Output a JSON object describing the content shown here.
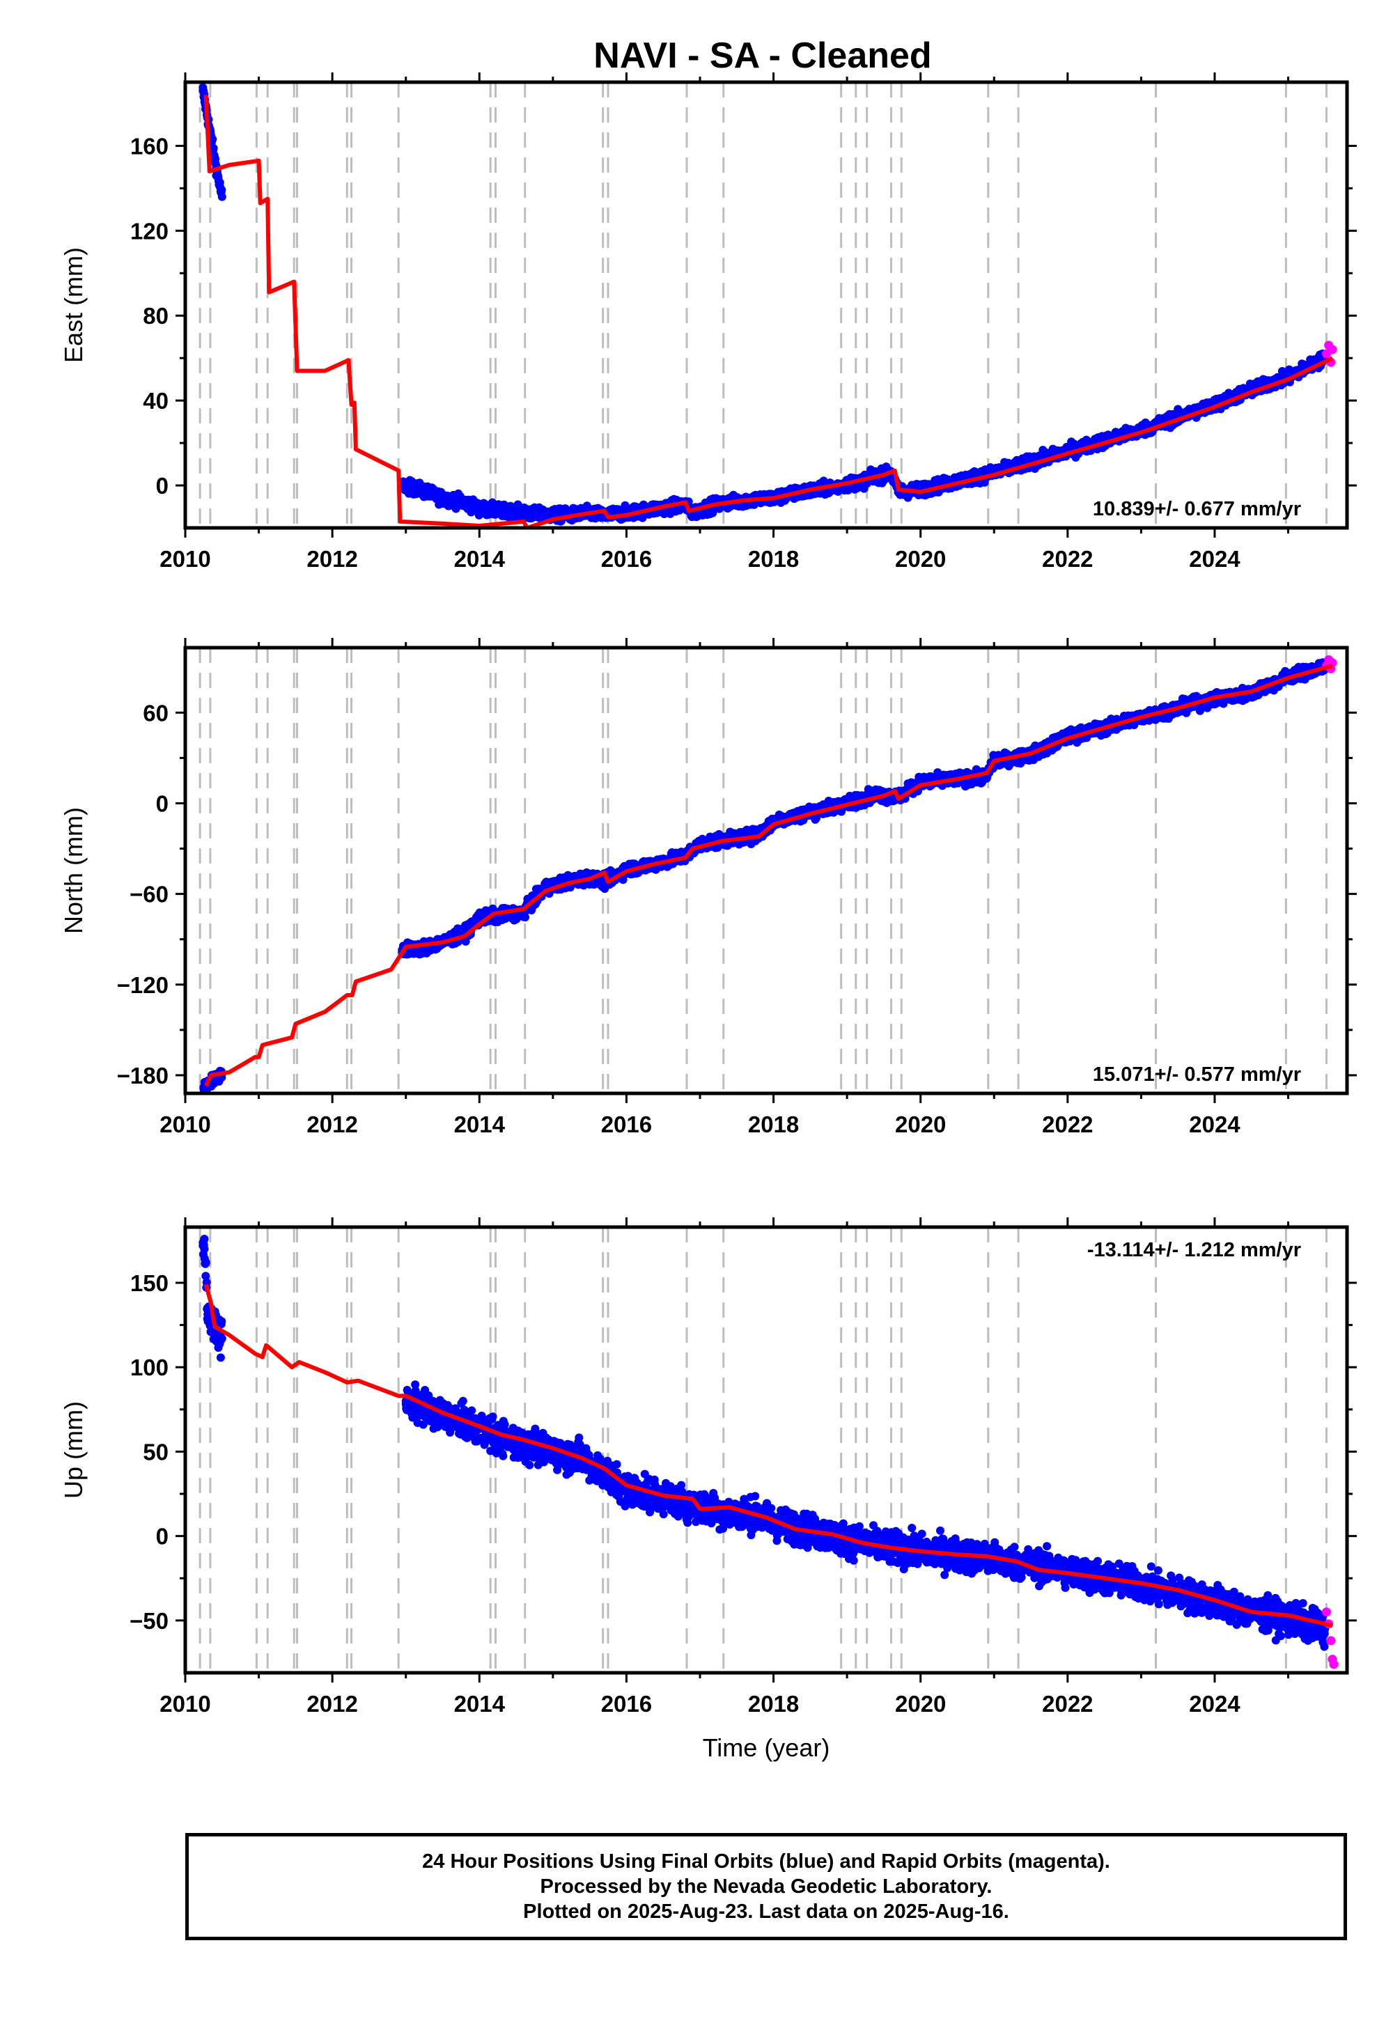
{
  "title": "NAVI  - SA - Cleaned",
  "colors": {
    "final": "#0000ff",
    "rapid": "#ff00ff",
    "model": "#ff0000",
    "step": "#bdbdbd",
    "frame": "#000000"
  },
  "chart_data": [
    {
      "type": "scatter",
      "panel": "east",
      "ylabel": "East (mm)",
      "xlabel": "",
      "xlim": [
        2010.0,
        2025.8
      ],
      "ylim": [
        -20,
        190
      ],
      "xticks": [
        2010,
        2012,
        2014,
        2016,
        2018,
        2020,
        2022,
        2024
      ],
      "yticks": [
        0,
        40,
        80,
        120,
        160
      ],
      "rate_label": "10.839+/- 0.677 mm/yr",
      "final_series": [
        [
          2010.24,
          186
        ],
        [
          2010.28,
          178
        ],
        [
          2010.33,
          168
        ],
        [
          2010.38,
          158
        ],
        [
          2010.43,
          148
        ],
        [
          2010.5,
          136
        ],
        [
          2012.95,
          0
        ],
        [
          2013.2,
          -2
        ],
        [
          2013.5,
          -6
        ],
        [
          2013.8,
          -8
        ],
        [
          2014.0,
          -11
        ],
        [
          2014.3,
          -12
        ],
        [
          2014.6,
          -13
        ],
        [
          2014.9,
          -14
        ],
        [
          2015.2,
          -14
        ],
        [
          2015.5,
          -13
        ],
        [
          2015.7,
          -14
        ],
        [
          2016.0,
          -13
        ],
        [
          2016.4,
          -11
        ],
        [
          2016.8,
          -9
        ],
        [
          2016.9,
          -13
        ],
        [
          2017.2,
          -9
        ],
        [
          2017.6,
          -7
        ],
        [
          2018.0,
          -6
        ],
        [
          2018.4,
          -3
        ],
        [
          2018.8,
          -1
        ],
        [
          2019.2,
          2
        ],
        [
          2019.6,
          6
        ],
        [
          2019.7,
          -3
        ],
        [
          2020.0,
          -2
        ],
        [
          2020.5,
          2
        ],
        [
          2021.0,
          6
        ],
        [
          2021.5,
          11
        ],
        [
          2022.0,
          16
        ],
        [
          2022.5,
          21
        ],
        [
          2023.0,
          26
        ],
        [
          2023.5,
          32
        ],
        [
          2024.0,
          38
        ],
        [
          2024.5,
          45
        ],
        [
          2025.0,
          51
        ],
        [
          2025.5,
          60
        ]
      ],
      "rapid_series": [
        [
          2025.52,
          62
        ],
        [
          2025.55,
          66
        ],
        [
          2025.58,
          58
        ],
        [
          2025.6,
          64
        ]
      ],
      "model_line": [
        [
          2010.28,
          184
        ],
        [
          2010.33,
          148
        ],
        [
          2010.6,
          151
        ],
        [
          2011.0,
          153
        ],
        [
          2011.02,
          133
        ],
        [
          2011.12,
          135
        ],
        [
          2011.14,
          91
        ],
        [
          2011.48,
          96
        ],
        [
          2011.5,
          75
        ],
        [
          2011.52,
          54
        ],
        [
          2011.9,
          54
        ],
        [
          2012.22,
          59
        ],
        [
          2012.26,
          38
        ],
        [
          2012.3,
          39
        ],
        [
          2012.32,
          17
        ],
        [
          2012.9,
          7
        ],
        [
          2012.92,
          -17
        ],
        [
          2013.5,
          -18
        ],
        [
          2014.0,
          -19
        ],
        [
          2014.3,
          -18
        ],
        [
          2014.6,
          -17
        ],
        [
          2014.65,
          -20
        ],
        [
          2015.0,
          -16
        ],
        [
          2015.5,
          -13
        ],
        [
          2015.7,
          -12
        ],
        [
          2015.75,
          -15
        ],
        [
          2016.0,
          -14
        ],
        [
          2016.5,
          -10
        ],
        [
          2016.8,
          -8
        ],
        [
          2016.85,
          -12
        ],
        [
          2017.2,
          -9
        ],
        [
          2017.6,
          -7
        ],
        [
          2018.0,
          -6
        ],
        [
          2018.5,
          -2
        ],
        [
          2019.0,
          1
        ],
        [
          2019.5,
          5
        ],
        [
          2019.65,
          7
        ],
        [
          2019.7,
          -2
        ],
        [
          2020.0,
          -3
        ],
        [
          2020.5,
          1
        ],
        [
          2021.0,
          5
        ],
        [
          2021.5,
          10
        ],
        [
          2022.0,
          15
        ],
        [
          2022.5,
          20
        ],
        [
          2023.0,
          25
        ],
        [
          2023.5,
          31
        ],
        [
          2024.0,
          37
        ],
        [
          2024.5,
          44
        ],
        [
          2025.0,
          50
        ],
        [
          2025.6,
          60
        ]
      ]
    },
    {
      "type": "scatter",
      "panel": "north",
      "ylabel": "North (mm)",
      "xlabel": "",
      "xlim": [
        2010.0,
        2025.8
      ],
      "ylim": [
        -192,
        103
      ],
      "xticks": [
        2010,
        2012,
        2014,
        2016,
        2018,
        2020,
        2022,
        2024
      ],
      "yticks": [
        -180,
        -120,
        -60,
        0,
        60
      ],
      "rate_label": "15.071+/- 0.577 mm/yr",
      "final_series": [
        [
          2010.25,
          -188
        ],
        [
          2010.3,
          -186
        ],
        [
          2010.4,
          -182
        ],
        [
          2010.5,
          -179
        ],
        [
          2012.95,
          -97
        ],
        [
          2013.2,
          -96
        ],
        [
          2013.5,
          -92
        ],
        [
          2013.8,
          -86
        ],
        [
          2014.0,
          -76
        ],
        [
          2014.3,
          -74
        ],
        [
          2014.6,
          -72
        ],
        [
          2014.9,
          -56
        ],
        [
          2015.2,
          -52
        ],
        [
          2015.5,
          -49
        ],
        [
          2015.7,
          -52
        ],
        [
          2016.0,
          -44
        ],
        [
          2016.4,
          -40
        ],
        [
          2016.8,
          -35
        ],
        [
          2017.0,
          -27
        ],
        [
          2017.4,
          -24
        ],
        [
          2017.8,
          -21
        ],
        [
          2018.0,
          -12
        ],
        [
          2018.5,
          -6
        ],
        [
          2019.0,
          0
        ],
        [
          2019.4,
          6
        ],
        [
          2019.7,
          4
        ],
        [
          2020.0,
          14
        ],
        [
          2020.5,
          16
        ],
        [
          2020.9,
          18
        ],
        [
          2021.0,
          28
        ],
        [
          2021.5,
          32
        ],
        [
          2022.0,
          44
        ],
        [
          2022.5,
          50
        ],
        [
          2023.0,
          57
        ],
        [
          2023.5,
          63
        ],
        [
          2024.0,
          69
        ],
        [
          2024.5,
          73
        ],
        [
          2025.0,
          84
        ],
        [
          2025.5,
          90
        ]
      ],
      "rapid_series": [
        [
          2025.52,
          91
        ],
        [
          2025.55,
          95
        ],
        [
          2025.58,
          89
        ],
        [
          2025.6,
          93
        ]
      ],
      "model_line": [
        [
          2010.28,
          -187
        ],
        [
          2010.35,
          -180
        ],
        [
          2010.6,
          -178
        ],
        [
          2010.95,
          -168
        ],
        [
          2011.0,
          -168
        ],
        [
          2011.05,
          -160
        ],
        [
          2011.45,
          -155
        ],
        [
          2011.5,
          -146
        ],
        [
          2011.9,
          -138
        ],
        [
          2012.2,
          -127
        ],
        [
          2012.27,
          -127
        ],
        [
          2012.32,
          -118
        ],
        [
          2012.8,
          -110
        ],
        [
          2013.0,
          -95
        ],
        [
          2013.5,
          -92
        ],
        [
          2013.8,
          -88
        ],
        [
          2014.0,
          -80
        ],
        [
          2014.2,
          -73
        ],
        [
          2014.6,
          -70
        ],
        [
          2014.9,
          -58
        ],
        [
          2015.2,
          -53
        ],
        [
          2015.5,
          -50
        ],
        [
          2015.7,
          -46
        ],
        [
          2015.75,
          -52
        ],
        [
          2016.0,
          -45
        ],
        [
          2016.4,
          -40
        ],
        [
          2016.8,
          -36
        ],
        [
          2016.9,
          -30
        ],
        [
          2017.3,
          -25
        ],
        [
          2017.8,
          -22
        ],
        [
          2018.0,
          -14
        ],
        [
          2018.5,
          -7
        ],
        [
          2019.0,
          -1
        ],
        [
          2019.5,
          5
        ],
        [
          2019.65,
          8
        ],
        [
          2019.7,
          3
        ],
        [
          2020.0,
          12
        ],
        [
          2020.5,
          16
        ],
        [
          2020.9,
          20
        ],
        [
          2021.0,
          28
        ],
        [
          2021.5,
          33
        ],
        [
          2022.0,
          43
        ],
        [
          2022.5,
          50
        ],
        [
          2023.0,
          57
        ],
        [
          2023.5,
          63
        ],
        [
          2024.0,
          70
        ],
        [
          2024.5,
          74
        ],
        [
          2025.0,
          83
        ],
        [
          2025.6,
          91
        ]
      ]
    },
    {
      "type": "scatter",
      "panel": "up",
      "ylabel": "Up (mm)",
      "xlabel": "Time (year)",
      "xlim": [
        2010.0,
        2025.8
      ],
      "ylim": [
        -81,
        183
      ],
      "xticks": [
        2010,
        2012,
        2014,
        2016,
        2018,
        2020,
        2022,
        2024
      ],
      "yticks": [
        -50,
        0,
        50,
        100,
        150
      ],
      "rate_label": "-13.114+/- 1.212 mm/yr",
      "final_series": [
        [
          2010.24,
          172
        ],
        [
          2010.26,
          176
        ],
        [
          2010.3,
          135
        ],
        [
          2010.35,
          128
        ],
        [
          2010.4,
          122
        ],
        [
          2010.5,
          117
        ],
        [
          2013.0,
          80
        ],
        [
          2013.3,
          75
        ],
        [
          2013.6,
          70
        ],
        [
          2014.0,
          64
        ],
        [
          2014.3,
          58
        ],
        [
          2014.6,
          54
        ],
        [
          2015.0,
          50
        ],
        [
          2015.4,
          46
        ],
        [
          2015.8,
          34
        ],
        [
          2016.0,
          28
        ],
        [
          2016.4,
          24
        ],
        [
          2016.8,
          20
        ],
        [
          2017.0,
          17
        ],
        [
          2017.4,
          14
        ],
        [
          2017.8,
          12
        ],
        [
          2018.0,
          8
        ],
        [
          2018.4,
          4
        ],
        [
          2018.8,
          0
        ],
        [
          2019.2,
          -4
        ],
        [
          2019.6,
          -7
        ],
        [
          2020.0,
          -9
        ],
        [
          2020.5,
          -11
        ],
        [
          2021.0,
          -14
        ],
        [
          2021.5,
          -17
        ],
        [
          2022.0,
          -21
        ],
        [
          2022.5,
          -25
        ],
        [
          2023.0,
          -29
        ],
        [
          2023.5,
          -34
        ],
        [
          2024.0,
          -39
        ],
        [
          2024.5,
          -45
        ],
        [
          2025.0,
          -49
        ],
        [
          2025.5,
          -55
        ]
      ],
      "rapid_series": [
        [
          2025.52,
          -45
        ],
        [
          2025.55,
          -52
        ],
        [
          2025.58,
          -62
        ],
        [
          2025.6,
          -73
        ],
        [
          2025.62,
          -76
        ]
      ],
      "model_line": [
        [
          2010.28,
          149
        ],
        [
          2010.35,
          138
        ],
        [
          2010.4,
          124
        ],
        [
          2010.6,
          119
        ],
        [
          2010.95,
          108
        ],
        [
          2011.05,
          106
        ],
        [
          2011.1,
          113
        ],
        [
          2011.45,
          100
        ],
        [
          2011.55,
          103
        ],
        [
          2011.9,
          97
        ],
        [
          2012.2,
          91
        ],
        [
          2012.35,
          92
        ],
        [
          2012.9,
          83
        ],
        [
          2013.0,
          83
        ],
        [
          2013.5,
          73
        ],
        [
          2014.0,
          65
        ],
        [
          2014.3,
          60
        ],
        [
          2014.6,
          57
        ],
        [
          2015.0,
          52
        ],
        [
          2015.4,
          46
        ],
        [
          2015.7,
          40
        ],
        [
          2016.0,
          30
        ],
        [
          2016.5,
          24
        ],
        [
          2016.9,
          22
        ],
        [
          2017.0,
          16
        ],
        [
          2017.4,
          17
        ],
        [
          2017.9,
          11
        ],
        [
          2018.3,
          4
        ],
        [
          2018.8,
          1
        ],
        [
          2019.2,
          -4
        ],
        [
          2019.6,
          -7
        ],
        [
          2020.0,
          -9
        ],
        [
          2020.5,
          -11
        ],
        [
          2020.9,
          -12
        ],
        [
          2021.3,
          -15
        ],
        [
          2021.6,
          -20
        ],
        [
          2022.0,
          -22
        ],
        [
          2022.5,
          -25
        ],
        [
          2023.0,
          -28
        ],
        [
          2023.5,
          -32
        ],
        [
          2024.0,
          -38
        ],
        [
          2024.5,
          -45
        ],
        [
          2025.0,
          -47
        ],
        [
          2025.6,
          -53
        ]
      ]
    }
  ],
  "equipment_steps": [
    2010.2,
    2010.34,
    2010.97,
    2011.12,
    2011.48,
    2011.52,
    2012.2,
    2012.26,
    2012.9,
    2014.15,
    2014.22,
    2014.62,
    2015.68,
    2015.75,
    2016.82,
    2017.32,
    2018.92,
    2019.12,
    2019.27,
    2019.6,
    2019.74,
    2020.92,
    2021.33,
    2023.2,
    2024.97,
    2025.52
  ],
  "footer": {
    "line1": "24 Hour Positions Using Final Orbits (blue) and Rapid Orbits (magenta).",
    "line2": "Processed by the Nevada Geodetic Laboratory.",
    "line3": "Plotted on 2025-Aug-23. Last data on 2025-Aug-16."
  }
}
